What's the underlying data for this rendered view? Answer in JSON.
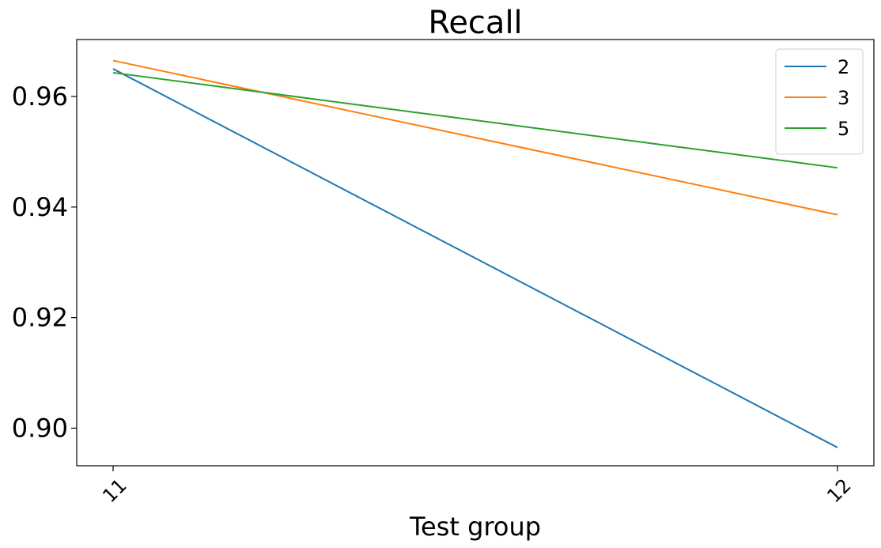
{
  "chart_data": {
    "type": "line",
    "title": "Recall",
    "xlabel": "Test group",
    "ylabel": "",
    "categories": [
      "11",
      "12"
    ],
    "yticks": [
      "0.90",
      "0.92",
      "0.94",
      "0.96"
    ],
    "ylim": [
      0.8932,
      0.9703
    ],
    "grid": false,
    "legend_position": "top-right",
    "series": [
      {
        "name": "2",
        "color": "#1f77b4",
        "values": [
          0.965,
          0.8965
        ]
      },
      {
        "name": "3",
        "color": "#ff7f0e",
        "values": [
          0.9665,
          0.9386
        ]
      },
      {
        "name": "5",
        "color": "#2ca02c",
        "values": [
          0.9643,
          0.9471
        ]
      }
    ]
  }
}
